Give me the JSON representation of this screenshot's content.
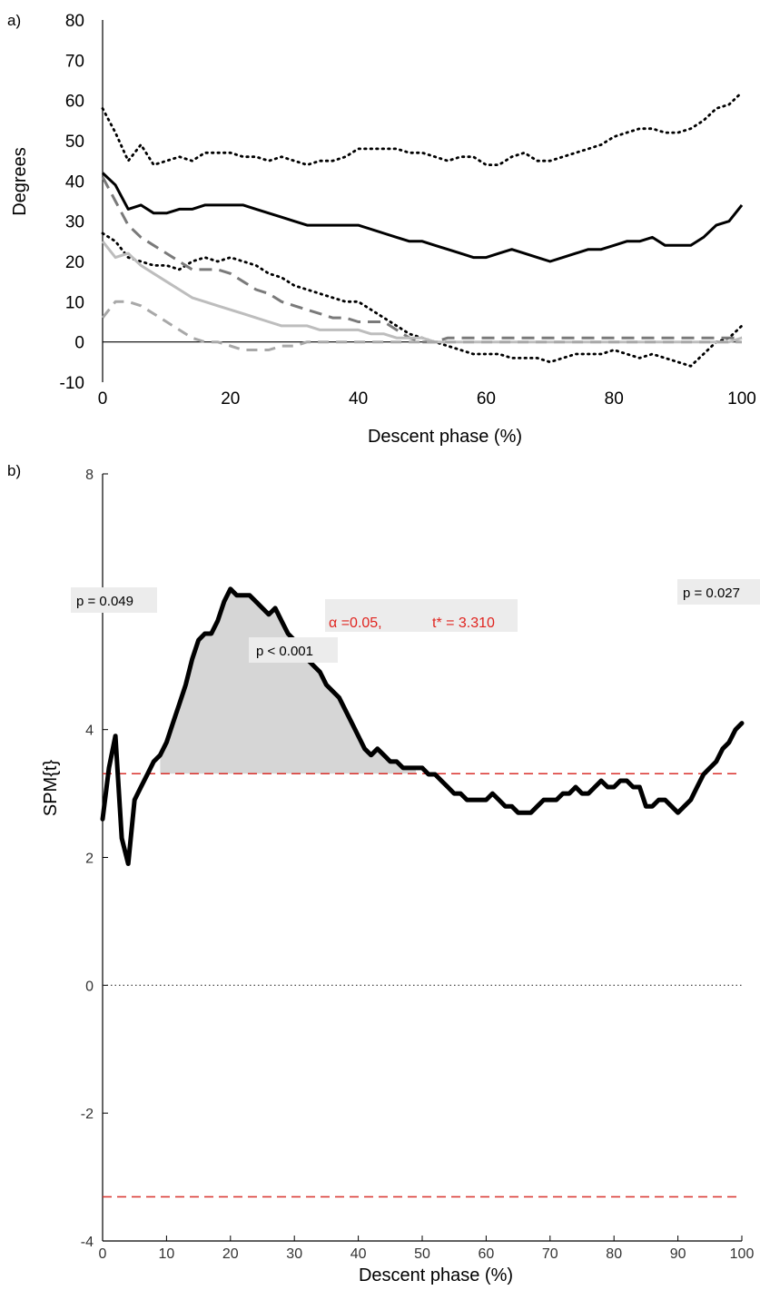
{
  "chart_data": [
    {
      "panel_label": "a)",
      "type": "line",
      "xlabel": "Descent phase (%)",
      "ylabel": "Degrees",
      "xlim": [
        0,
        100
      ],
      "ylim": [
        -10,
        80
      ],
      "xticks": [
        0,
        20,
        40,
        60,
        80,
        100
      ],
      "yticks": [
        -10,
        0,
        10,
        20,
        30,
        40,
        50,
        60,
        70,
        80
      ],
      "series": [
        {
          "style": "solid-black",
          "x": [
            0,
            2,
            4,
            6,
            8,
            10,
            12,
            14,
            16,
            18,
            20,
            22,
            24,
            26,
            28,
            30,
            32,
            34,
            36,
            38,
            40,
            42,
            44,
            46,
            48,
            50,
            52,
            54,
            56,
            58,
            60,
            62,
            64,
            66,
            68,
            70,
            72,
            74,
            76,
            78,
            80,
            82,
            84,
            86,
            88,
            90,
            92,
            94,
            96,
            98,
            100
          ],
          "y": [
            42,
            39,
            33,
            34,
            32,
            32,
            33,
            33,
            34,
            34,
            34,
            34,
            33,
            32,
            31,
            30,
            29,
            29,
            29,
            29,
            29,
            28,
            27,
            26,
            25,
            25,
            24,
            23,
            22,
            21,
            21,
            22,
            23,
            22,
            21,
            20,
            21,
            22,
            23,
            23,
            24,
            25,
            25,
            26,
            24,
            24,
            24,
            26,
            29,
            30,
            34
          ]
        },
        {
          "style": "dotted-black",
          "x": [
            0,
            2,
            4,
            6,
            8,
            10,
            12,
            14,
            16,
            18,
            20,
            22,
            24,
            26,
            28,
            30,
            32,
            34,
            36,
            38,
            40,
            42,
            44,
            46,
            48,
            50,
            52,
            54,
            56,
            58,
            60,
            62,
            64,
            66,
            68,
            70,
            72,
            74,
            76,
            78,
            80,
            82,
            84,
            86,
            88,
            90,
            92,
            94,
            96,
            98,
            100
          ],
          "y": [
            58,
            52,
            45,
            49,
            44,
            45,
            46,
            45,
            47,
            47,
            47,
            46,
            46,
            45,
            46,
            45,
            44,
            45,
            45,
            46,
            48,
            48,
            48,
            48,
            47,
            47,
            46,
            45,
            46,
            46,
            44,
            44,
            46,
            47,
            45,
            45,
            46,
            47,
            48,
            49,
            51,
            52,
            53,
            53,
            52,
            52,
            53,
            55,
            58,
            59,
            62
          ]
        },
        {
          "style": "dotted-black",
          "x": [
            0,
            2,
            4,
            6,
            8,
            10,
            12,
            14,
            16,
            18,
            20,
            22,
            24,
            26,
            28,
            30,
            32,
            34,
            36,
            38,
            40,
            42,
            44,
            46,
            48,
            50,
            52,
            54,
            56,
            58,
            60,
            62,
            64,
            66,
            68,
            70,
            72,
            74,
            76,
            78,
            80,
            82,
            84,
            86,
            88,
            90,
            92,
            94,
            96,
            98,
            100
          ],
          "y": [
            27,
            25,
            21,
            20,
            19,
            19,
            18,
            20,
            21,
            20,
            21,
            20,
            19,
            17,
            16,
            14,
            13,
            12,
            11,
            10,
            10,
            8,
            6,
            4,
            2,
            1,
            0,
            -1,
            -2,
            -3,
            -3,
            -3,
            -4,
            -4,
            -4,
            -5,
            -4,
            -3,
            -3,
            -3,
            -2,
            -3,
            -4,
            -3,
            -4,
            -5,
            -6,
            -3,
            0,
            1,
            4
          ]
        },
        {
          "style": "dashed-darkgray",
          "x": [
            0,
            2,
            4,
            6,
            8,
            10,
            12,
            14,
            16,
            18,
            20,
            22,
            24,
            26,
            28,
            30,
            32,
            34,
            36,
            38,
            40,
            42,
            44,
            46,
            48,
            50,
            52,
            54,
            56,
            58,
            60,
            62,
            64,
            66,
            68,
            70,
            72,
            74,
            76,
            78,
            80,
            82,
            84,
            86,
            88,
            90,
            92,
            94,
            96,
            98,
            100
          ],
          "y": [
            41,
            35,
            29,
            26,
            24,
            22,
            20,
            18,
            18,
            18,
            17,
            15,
            13,
            12,
            10,
            9,
            8,
            7,
            6,
            6,
            5,
            5,
            5,
            3,
            1,
            0,
            0,
            1,
            1,
            1,
            1,
            1,
            1,
            1,
            1,
            1,
            1,
            1,
            1,
            1,
            1,
            1,
            1,
            1,
            1,
            1,
            1,
            1,
            1,
            1,
            1
          ]
        },
        {
          "style": "solid-lightgray",
          "x": [
            0,
            2,
            4,
            6,
            8,
            10,
            12,
            14,
            16,
            18,
            20,
            22,
            24,
            26,
            28,
            30,
            32,
            34,
            36,
            38,
            40,
            42,
            44,
            46,
            48,
            50,
            52,
            54,
            56,
            58,
            60,
            62,
            64,
            66,
            68,
            70,
            72,
            74,
            76,
            78,
            80,
            82,
            84,
            86,
            88,
            90,
            92,
            94,
            96,
            98,
            100
          ],
          "y": [
            25,
            21,
            22,
            19,
            17,
            15,
            13,
            11,
            10,
            9,
            8,
            7,
            6,
            5,
            4,
            4,
            4,
            3,
            3,
            3,
            3,
            2,
            2,
            1,
            1,
            1,
            0,
            0,
            0,
            0,
            0,
            0,
            0,
            0,
            0,
            0,
            0,
            0,
            0,
            0,
            0,
            0,
            0,
            0,
            0,
            0,
            0,
            0,
            0,
            0,
            1
          ]
        },
        {
          "style": "dashed-lightgray",
          "x": [
            0,
            2,
            4,
            6,
            8,
            10,
            12,
            14,
            16,
            18,
            20,
            22,
            24,
            26,
            28,
            30,
            32,
            34,
            36,
            38,
            40,
            42,
            44,
            46,
            48,
            50,
            52,
            54,
            56,
            58,
            60,
            62,
            64,
            66,
            68,
            70,
            72,
            74,
            76,
            78,
            80,
            82,
            84,
            86,
            88,
            90,
            92,
            94,
            96,
            98,
            100
          ],
          "y": [
            6,
            10,
            10,
            9,
            7,
            5,
            3,
            1,
            0,
            0,
            -1,
            -2,
            -2,
            -2,
            -1,
            -1,
            0,
            0,
            0,
            0,
            0,
            0,
            0,
            0,
            0,
            0,
            0,
            0,
            0,
            0,
            0,
            0,
            0,
            0,
            0,
            0,
            0,
            0,
            0,
            0,
            0,
            0,
            0,
            0,
            0,
            0,
            0,
            0,
            0,
            0,
            0
          ]
        }
      ]
    },
    {
      "panel_label": "b)",
      "type": "line",
      "xlabel": "Descent phase (%)",
      "ylabel": "SPM{t}",
      "xlim": [
        0,
        100
      ],
      "ylim": [
        -4,
        8
      ],
      "xticks": [
        0,
        10,
        20,
        30,
        40,
        50,
        60,
        70,
        80,
        90,
        100
      ],
      "yticks": [
        -4,
        -2,
        0,
        2,
        4,
        6,
        8
      ],
      "threshold": 3.31,
      "threshold_label_alpha": "α =0.05,",
      "threshold_label_t": "t* = 3.310",
      "annotations": [
        "p = 0.049",
        "p < 0.001",
        "p = 0.027"
      ],
      "series": [
        {
          "style": "thick-black",
          "x": [
            0,
            1,
            2,
            3,
            4,
            5,
            6,
            7,
            8,
            9,
            10,
            11,
            12,
            13,
            14,
            15,
            16,
            17,
            18,
            19,
            20,
            21,
            22,
            23,
            24,
            25,
            26,
            27,
            28,
            29,
            30,
            31,
            32,
            33,
            34,
            35,
            36,
            37,
            38,
            39,
            40,
            41,
            42,
            43,
            44,
            45,
            46,
            47,
            48,
            49,
            50,
            51,
            52,
            53,
            54,
            55,
            56,
            57,
            58,
            59,
            60,
            61,
            62,
            63,
            64,
            65,
            66,
            67,
            68,
            69,
            70,
            71,
            72,
            73,
            74,
            75,
            76,
            77,
            78,
            79,
            80,
            81,
            82,
            83,
            84,
            85,
            86,
            87,
            88,
            89,
            90,
            91,
            92,
            93,
            94,
            95,
            96,
            97,
            98,
            99,
            100
          ],
          "y": [
            2.6,
            3.4,
            3.9,
            2.3,
            1.9,
            2.9,
            3.1,
            3.3,
            3.5,
            3.6,
            3.8,
            4.1,
            4.4,
            4.7,
            5.1,
            5.4,
            5.5,
            5.5,
            5.7,
            6.0,
            6.2,
            6.1,
            6.1,
            6.1,
            6.0,
            5.9,
            5.8,
            5.9,
            5.7,
            5.5,
            5.4,
            5.3,
            5.1,
            5.0,
            4.9,
            4.7,
            4.6,
            4.5,
            4.3,
            4.1,
            3.9,
            3.7,
            3.6,
            3.7,
            3.6,
            3.5,
            3.5,
            3.4,
            3.4,
            3.4,
            3.4,
            3.3,
            3.3,
            3.2,
            3.1,
            3.0,
            3.0,
            2.9,
            2.9,
            2.9,
            2.9,
            3.0,
            2.9,
            2.8,
            2.8,
            2.7,
            2.7,
            2.7,
            2.8,
            2.9,
            2.9,
            2.9,
            3.0,
            3.0,
            3.1,
            3.0,
            3.0,
            3.1,
            3.2,
            3.1,
            3.1,
            3.2,
            3.2,
            3.1,
            3.1,
            2.8,
            2.8,
            2.9,
            2.9,
            2.8,
            2.7,
            2.8,
            2.9,
            3.1,
            3.3,
            3.4,
            3.5,
            3.7,
            3.8,
            4.0,
            4.1
          ]
        }
      ]
    }
  ]
}
